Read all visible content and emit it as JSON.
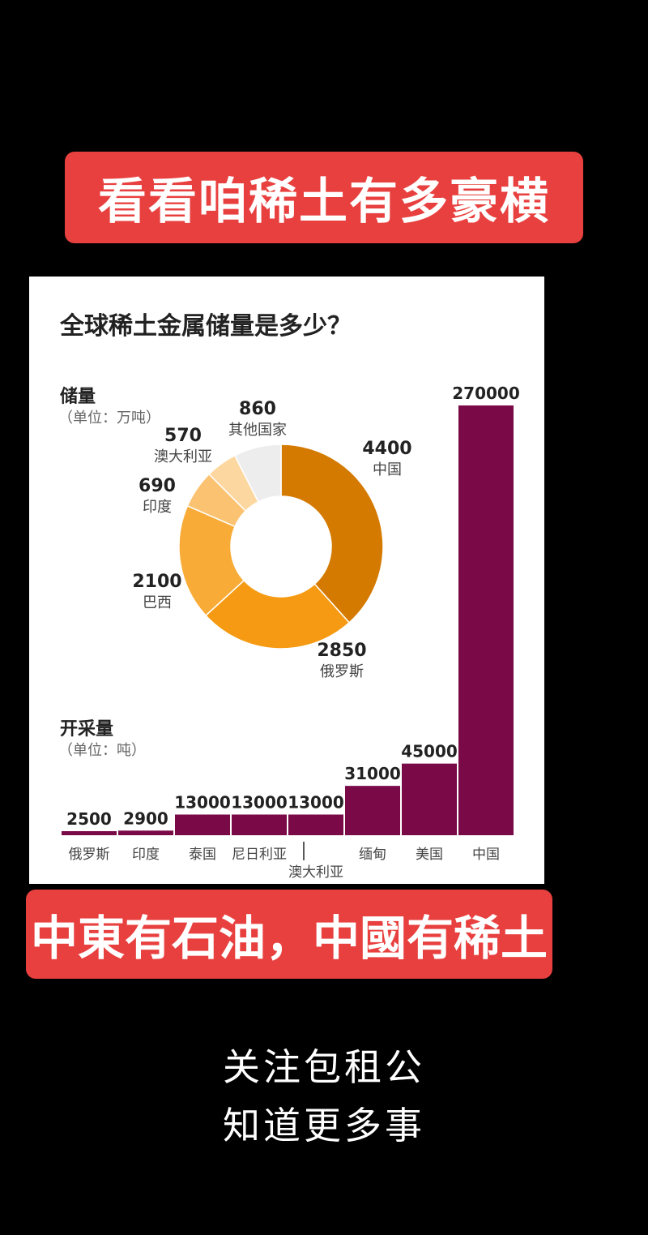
{
  "banner_top": "看看咱稀土有多豪横",
  "banner_bottom": "中東有石油，中國有稀土",
  "footer": {
    "line1": "关注包租公",
    "line2": "知道更多事"
  },
  "chart_data": [
    {
      "type": "pie",
      "title": "全球稀土金属储量是多少？",
      "section_label": "储量",
      "unit": "（单位：万吨）",
      "slices": [
        {
          "label": "中国",
          "value": 4400,
          "color": "#d47a00"
        },
        {
          "label": "俄罗斯",
          "value": 2850,
          "color": "#f59a12"
        },
        {
          "label": "巴西",
          "value": 2100,
          "color": "#f8ac37"
        },
        {
          "label": "印度",
          "value": 690,
          "color": "#fbc371"
        },
        {
          "label": "澳大利亚",
          "value": 570,
          "color": "#fdd7a0"
        },
        {
          "label": "其他国家",
          "value": 860,
          "color": "#ededed"
        }
      ]
    },
    {
      "type": "bar",
      "section_label": "开采量",
      "unit": "（单位：吨）",
      "categories": [
        "俄罗斯",
        "印度",
        "泰国",
        "尼日利亚",
        "澳大利亚",
        "缅甸",
        "美国",
        "中国"
      ],
      "values": [
        2500,
        2900,
        13000,
        13000,
        13000,
        31000,
        45000,
        270000
      ],
      "color": "#7a0a47"
    }
  ]
}
